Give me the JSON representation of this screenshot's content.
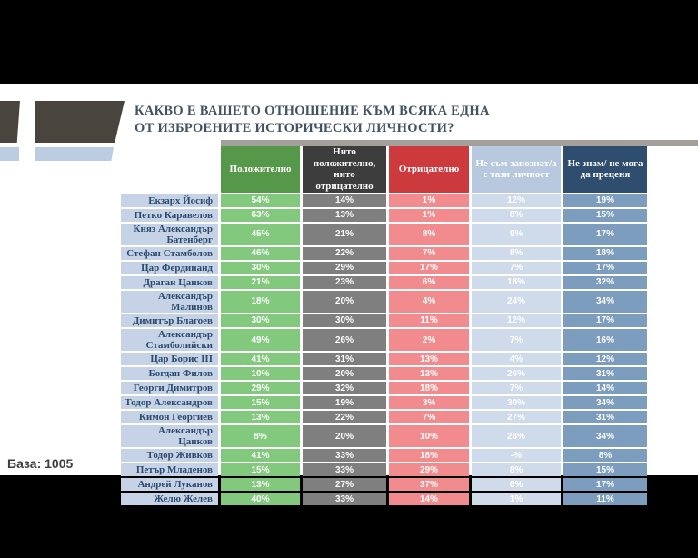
{
  "title": {
    "line1": "КАКВО Е ВАШЕТО ОТНОШЕНИЕ КЪМ ВСЯКА ЕДНА",
    "line2": "ОТ ИЗБРОЕНИТЕ ИСТОРИЧЕСКИ ЛИЧНОСТИ?"
  },
  "base_label": "База: 1005",
  "colors": {
    "positive_header": "#56984a",
    "positive_cell": "#82c97e",
    "neutral_header": "#3d3d3d",
    "neutral_cell": "#7f7f7f",
    "negative_header": "#cc3a3d",
    "negative_cell": "#f28b8d",
    "unfamiliar_header": "#b8c8de",
    "unfamiliar_cell": "#cfdaea",
    "dontknow_header": "#2f4d6e",
    "dontknow_cell": "#7d9dbe",
    "name_cell_bg": "#c6d3e6",
    "name_text": "#2c4a6e",
    "title_text": "#435263"
  },
  "chart_data": {
    "type": "table",
    "title": "КАКВО Е ВАШЕТО ОТНОШЕНИЕ КЪМ ВСЯКА ЕДНА ОТ ИЗБРОЕНИТЕ ИСТОРИЧЕСКИ ЛИЧНОСТИ?",
    "base": "База: 1005",
    "columns": [
      {
        "key": "positive",
        "label": "Положително"
      },
      {
        "key": "neutral",
        "label": "Нито положително, нито отрицателно"
      },
      {
        "key": "negative",
        "label": "Отрицателно"
      },
      {
        "key": "unfamiliar",
        "label": "Не съм запознат/а с тази личност"
      },
      {
        "key": "dontknow",
        "label": "Не знам/ не мога да преценя"
      }
    ],
    "rows": [
      {
        "name": "Екзарх Йосиф",
        "values": [
          "54%",
          "14%",
          "1%",
          "12%",
          "19%"
        ]
      },
      {
        "name": "Петко Каравелов",
        "values": [
          "63%",
          "13%",
          "1%",
          "8%",
          "15%"
        ]
      },
      {
        "name": "Княз Александър Батенберг",
        "values": [
          "45%",
          "21%",
          "8%",
          "9%",
          "17%"
        ]
      },
      {
        "name": "Стефан Стамболов",
        "values": [
          "46%",
          "22%",
          "7%",
          "8%",
          "18%"
        ]
      },
      {
        "name": "Цар Фердинанд",
        "values": [
          "30%",
          "29%",
          "17%",
          "7%",
          "17%"
        ]
      },
      {
        "name": "Драган Цанков",
        "values": [
          "21%",
          "23%",
          "6%",
          "18%",
          "32%"
        ]
      },
      {
        "name": "Александър Малинов",
        "values": [
          "18%",
          "20%",
          "4%",
          "24%",
          "34%"
        ]
      },
      {
        "name": "Димитър Благоев",
        "values": [
          "30%",
          "30%",
          "11%",
          "12%",
          "17%"
        ]
      },
      {
        "name": "Александър Стамболийски",
        "values": [
          "49%",
          "26%",
          "2%",
          "7%",
          "16%"
        ]
      },
      {
        "name": "Цар Борис III",
        "values": [
          "41%",
          "31%",
          "13%",
          "4%",
          "12%"
        ]
      },
      {
        "name": "Богдан Филов",
        "values": [
          "10%",
          "20%",
          "13%",
          "26%",
          "31%"
        ]
      },
      {
        "name": "Георги Димитров",
        "values": [
          "29%",
          "32%",
          "18%",
          "7%",
          "14%"
        ]
      },
      {
        "name": "Тодор Александров",
        "values": [
          "15%",
          "19%",
          "3%",
          "30%",
          "34%"
        ]
      },
      {
        "name": "Кимон Георгиев",
        "values": [
          "13%",
          "22%",
          "7%",
          "27%",
          "31%"
        ]
      },
      {
        "name": "Александър Цанков",
        "values": [
          "8%",
          "20%",
          "10%",
          "28%",
          "34%"
        ]
      },
      {
        "name": "Тодор Живков",
        "values": [
          "41%",
          "33%",
          "18%",
          "-%",
          "8%"
        ]
      },
      {
        "name": "Петър Младенов",
        "values": [
          "15%",
          "33%",
          "29%",
          "8%",
          "15%"
        ]
      },
      {
        "name": "Андрей Луканов",
        "values": [
          "13%",
          "27%",
          "37%",
          "6%",
          "17%"
        ]
      },
      {
        "name": "Желю Желев",
        "values": [
          "40%",
          "33%",
          "14%",
          "1%",
          "11%"
        ]
      }
    ]
  }
}
